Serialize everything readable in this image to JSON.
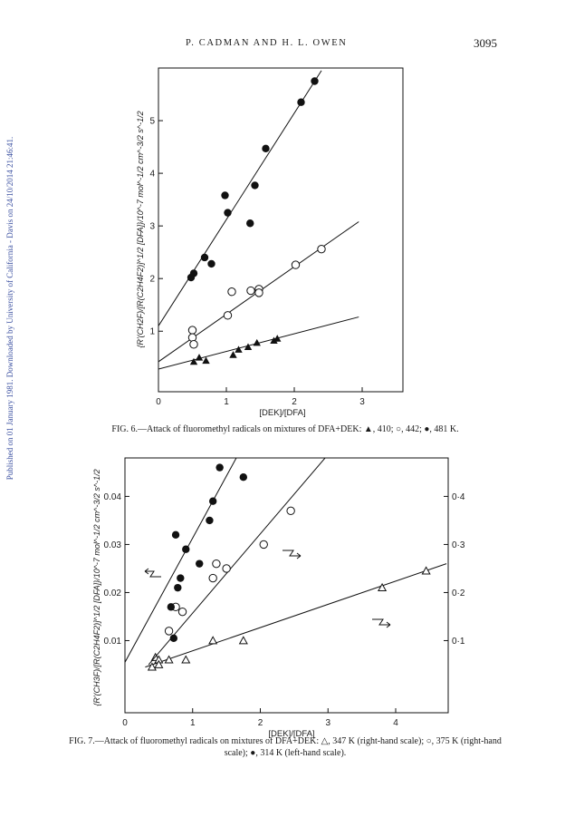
{
  "header": {
    "authors": "P. CADMAN AND H. L. OWEN",
    "page_number": "3095"
  },
  "sidebar_note": "Published on 01 January 1981. Downloaded by University of California - Davis on 24/10/2014 21:46:41.",
  "fig6": {
    "caption": "FIG. 6.—Attack of fluoromethyl radicals on mixtures of DFA+DEK: ▲, 410; ○, 442; ●, 481 K."
  },
  "fig7": {
    "caption": "FIG. 7.—Attack of fluoromethyl radicals on mixtures of DFA+DEK: △, 347 K (right-hand scale); ○, 375 K (right-hand scale); ●, 314 K (left-hand scale)."
  },
  "chart_data": [
    {
      "type": "scatter",
      "xlabel": "[DEK]/[DFA]",
      "ylabel": "{R'(CH2F)/[R(C2H4F2)]^1/2 [DFA]}/10^-7 mol^-1/2 cm^-3/2 s^-1/2",
      "xlim": [
        0,
        3.6
      ],
      "ylim": [
        -0.15,
        6.0
      ],
      "xticks": [
        0,
        1,
        2,
        3
      ],
      "yticks": [
        1,
        2,
        3,
        4,
        5
      ],
      "grid": false,
      "series": [
        {
          "marker": "filled-triangle",
          "x": [
            0.52,
            0.6,
            0.7,
            1.1,
            1.18,
            1.32,
            1.45,
            1.7,
            1.75
          ],
          "y": [
            0.42,
            0.5,
            0.44,
            0.55,
            0.65,
            0.7,
            0.78,
            0.82,
            0.86
          ],
          "fit": [
            [
              0,
              0.28
            ],
            [
              2.95,
              1.27
            ]
          ]
        },
        {
          "marker": "open-circle",
          "x": [
            0.5,
            0.5,
            0.52,
            1.02,
            1.08,
            1.36,
            1.48,
            1.48,
            2.02,
            2.4
          ],
          "y": [
            1.02,
            0.88,
            0.75,
            1.3,
            1.75,
            1.77,
            1.8,
            1.73,
            2.26,
            2.56
          ],
          "fit": [
            [
              0,
              0.42
            ],
            [
              2.95,
              3.08
            ]
          ]
        },
        {
          "marker": "filled-circle",
          "x": [
            0.48,
            0.52,
            0.68,
            0.78,
            0.98,
            1.02,
            1.35,
            1.42,
            1.58,
            2.1,
            2.3
          ],
          "y": [
            2.02,
            2.1,
            2.4,
            2.28,
            3.58,
            3.25,
            3.05,
            3.77,
            4.47,
            5.35,
            5.75
          ],
          "fit": [
            [
              0,
              1.1
            ],
            [
              2.4,
              5.95
            ]
          ]
        }
      ]
    },
    {
      "type": "scatter",
      "xlabel": "[DEK]/[DFA]",
      "ylabel": "{R'(CH3F)/[R(C2H4F2)]^1/2 [DFA]}/10^-7 mol^-1/2 cm^-3/2 s^-1/2",
      "xlim": [
        0,
        4.7
      ],
      "ylim_left": [
        -0.005,
        0.048
      ],
      "ylim_right": [
        -0.05,
        0.48
      ],
      "xticks": [
        0,
        1,
        2,
        3,
        4
      ],
      "yticks_left": [
        0.01,
        0.02,
        0.03,
        0.04
      ],
      "yticks_right": [
        0.1,
        0.2,
        0.3,
        0.4
      ],
      "ytick_labels_right": [
        "0·1",
        "0·2",
        "0·3",
        "0·4"
      ],
      "grid": false,
      "series": [
        {
          "marker": "open-triangle",
          "axis": "right",
          "x": [
            0.4,
            0.45,
            0.5,
            0.5,
            0.65,
            0.9,
            1.3,
            1.75,
            3.8,
            4.45
          ],
          "y": [
            0.045,
            0.065,
            0.06,
            0.05,
            0.06,
            0.06,
            0.1,
            0.1,
            0.21,
            0.245
          ],
          "fit": [
            [
              0.3,
              0.045
            ],
            [
              4.75,
              0.26
            ]
          ]
        },
        {
          "marker": "open-circle",
          "axis": "right",
          "x": [
            0.65,
            0.75,
            0.85,
            1.3,
            1.35,
            1.5,
            2.05,
            2.45
          ],
          "y": [
            0.12,
            0.17,
            0.16,
            0.23,
            0.26,
            0.25,
            0.3,
            0.37
          ],
          "fit": [
            [
              0.35,
              0.05
            ],
            [
              3.2,
              0.52
            ]
          ]
        },
        {
          "marker": "filled-circle",
          "axis": "left",
          "x": [
            0.68,
            0.72,
            0.75,
            0.78,
            0.82,
            0.9,
            1.1,
            1.25,
            1.3,
            1.4,
            1.75
          ],
          "y": [
            0.017,
            0.0105,
            0.032,
            0.021,
            0.023,
            0.029,
            0.026,
            0.035,
            0.039,
            0.046,
            0.044
          ],
          "fit": [
            [
              0,
              0.0055
            ],
            [
              1.8,
              0.052
            ]
          ]
        }
      ]
    }
  ]
}
